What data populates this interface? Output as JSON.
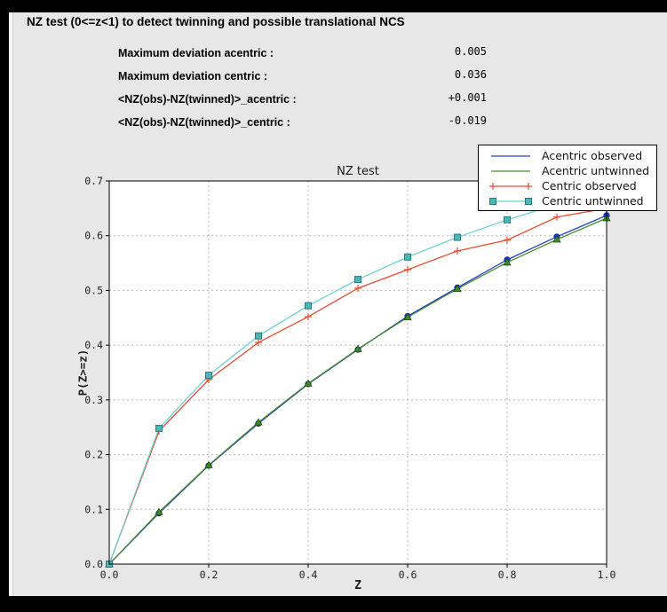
{
  "window": {
    "title": "NZ test (0<=z<1) to detect twinning and possible translational NCS"
  },
  "stats": {
    "rows": [
      {
        "label": "Maximum deviation acentric :",
        "value": "0.005"
      },
      {
        "label": "Maximum deviation centric :",
        "value": "0.036"
      },
      {
        "label": "<NZ(obs)-NZ(twinned)>_acentric :",
        "value": "+0.001"
      },
      {
        "label": "<NZ(obs)-NZ(twinned)>_centric :",
        "value": "-0.019"
      }
    ]
  },
  "chart_data": {
    "type": "line",
    "title": "NZ test",
    "xlabel": "Z",
    "ylabel": "P(Z>=z)",
    "xlim": [
      0.0,
      1.0
    ],
    "ylim": [
      0.0,
      0.7
    ],
    "xticks": [
      0.0,
      0.2,
      0.4,
      0.6,
      0.8,
      1.0
    ],
    "yticks": [
      0.0,
      0.1,
      0.2,
      0.3,
      0.4,
      0.5,
      0.6,
      0.7
    ],
    "grid": true,
    "legend_position": "upper right",
    "x": [
      0.0,
      0.1,
      0.2,
      0.3,
      0.4,
      0.5,
      0.6,
      0.7,
      0.8,
      0.9,
      1.0
    ],
    "series": [
      {
        "name": "Acentric observed",
        "color": "#2442cc",
        "marker": "circle",
        "marker_fill": "#2038c8",
        "marker_edge": "#15247f",
        "values": [
          0.0,
          0.093,
          0.18,
          0.257,
          0.329,
          0.392,
          0.453,
          0.505,
          0.556,
          0.598,
          0.637
        ]
      },
      {
        "name": "Acentric untwinned",
        "color": "#4a8b2c",
        "marker": "triangle",
        "marker_fill": "#3f8b28",
        "marker_edge": "#205112",
        "values": [
          0.0,
          0.095,
          0.181,
          0.259,
          0.33,
          0.393,
          0.451,
          0.503,
          0.551,
          0.593,
          0.632
        ]
      },
      {
        "name": "Centric observed",
        "color": "#ea4d32",
        "marker": "plus",
        "marker_fill": "#ea4d32",
        "marker_edge": "#ea4d32",
        "values": [
          0.0,
          0.243,
          0.337,
          0.405,
          0.452,
          0.504,
          0.538,
          0.572,
          0.592,
          0.634,
          0.65
        ]
      },
      {
        "name": "Centric untwinned",
        "color": "#6ed0d0",
        "marker": "square",
        "marker_fill": "#4fb6b6",
        "marker_edge": "#287e7e",
        "values": [
          0.0,
          0.248,
          0.345,
          0.417,
          0.472,
          0.52,
          0.561,
          0.597,
          0.629,
          0.657,
          0.683
        ]
      }
    ]
  }
}
